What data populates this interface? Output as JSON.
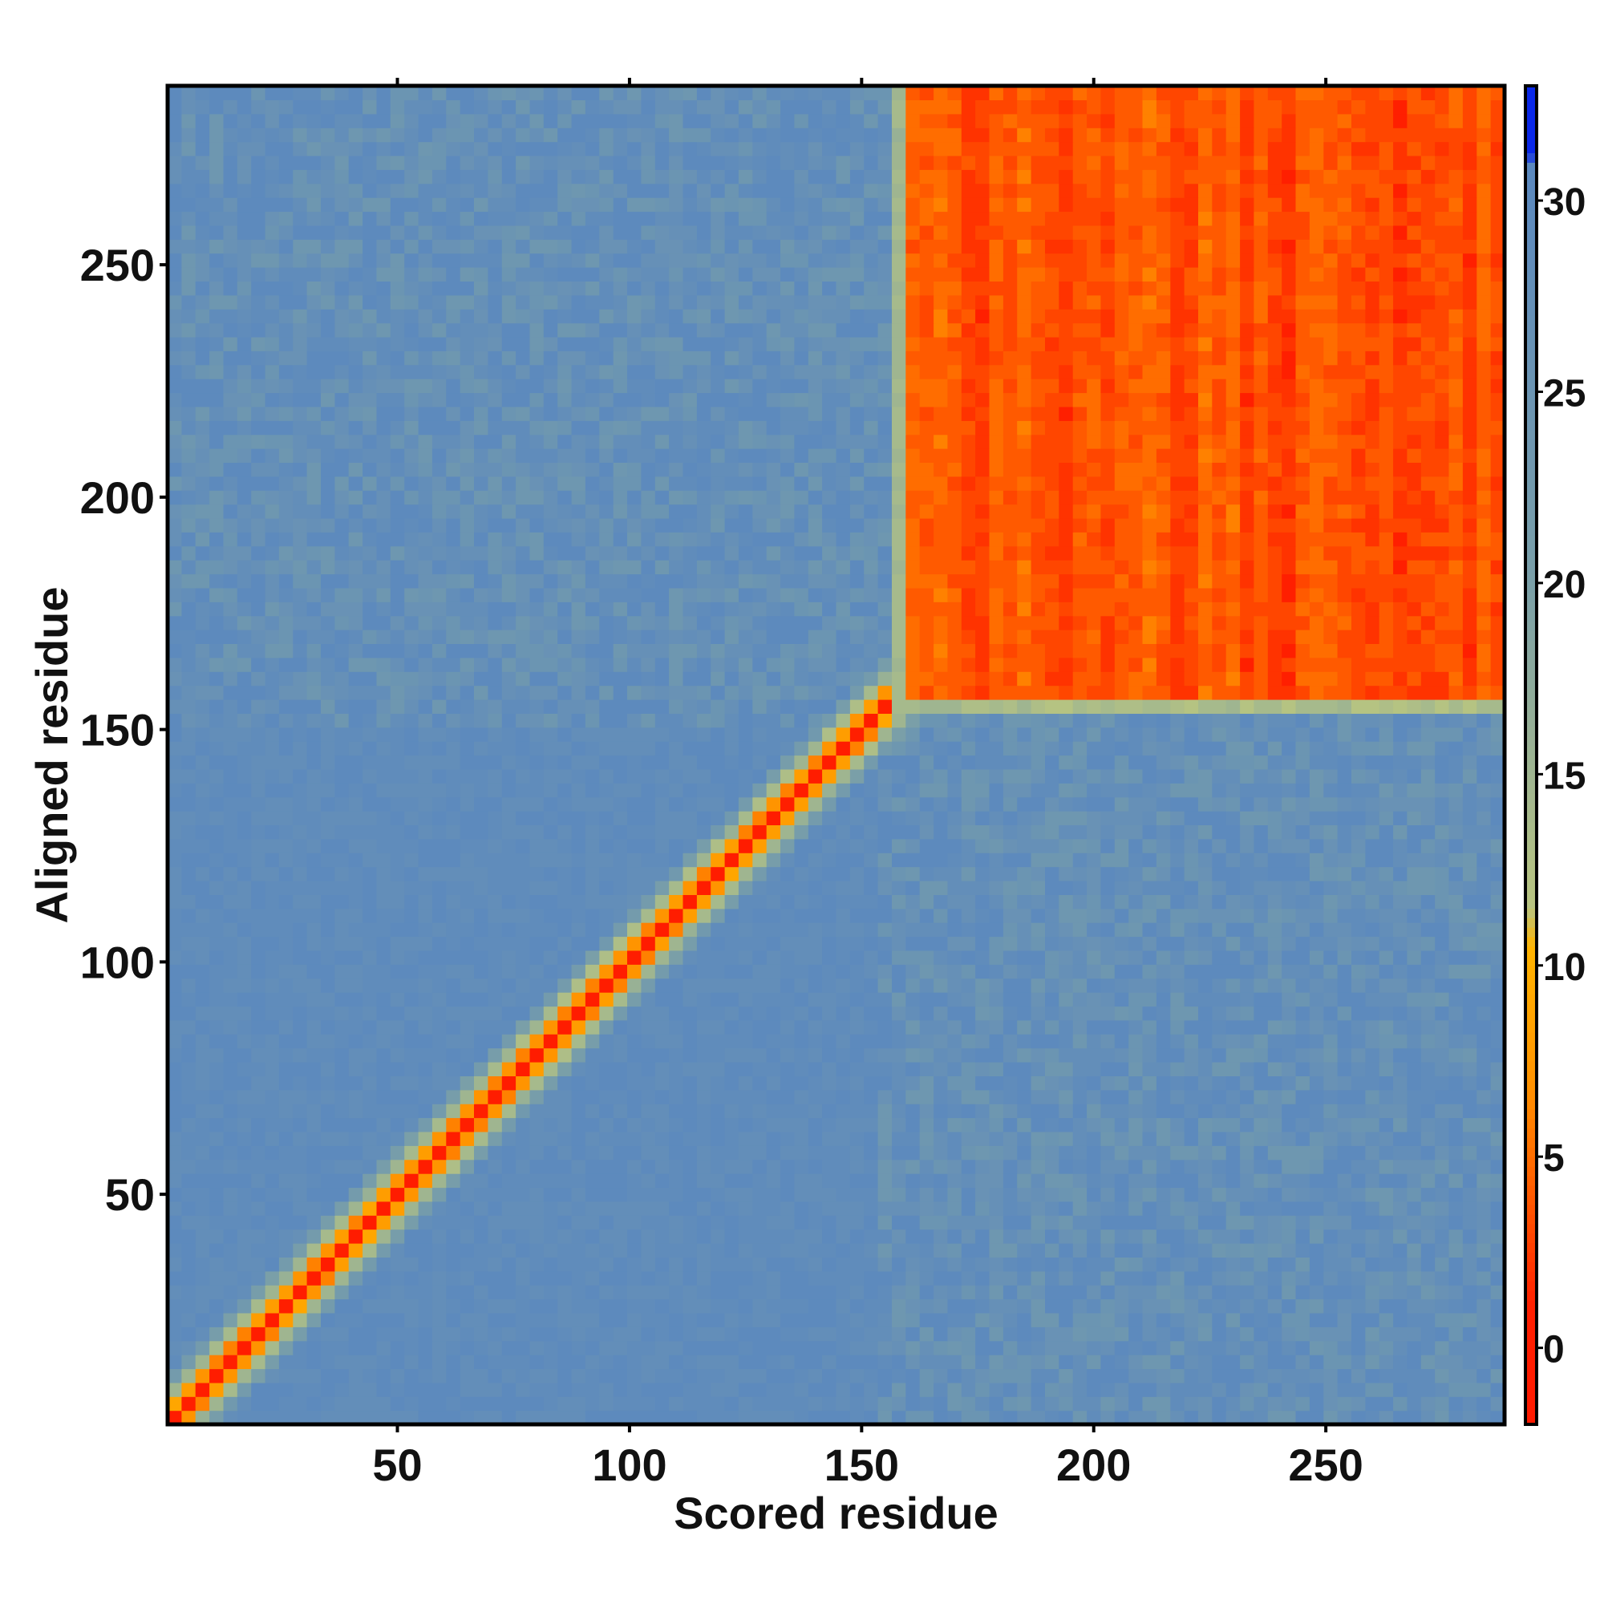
{
  "chart_data": {
    "type": "heatmap",
    "title": "",
    "xlabel": "Scored residue",
    "ylabel": "Aligned residue",
    "x_range": [
      1,
      288
    ],
    "y_range": [
      1,
      288
    ],
    "x_ticks": [
      50,
      100,
      150,
      200,
      250
    ],
    "y_ticks": [
      50,
      100,
      150,
      200,
      250
    ],
    "colorbar": {
      "range": [
        -2,
        33
      ],
      "ticks": [
        0,
        5,
        10,
        15,
        20,
        25,
        30
      ],
      "stops": [
        {
          "value": -2,
          "color": "#ff1a00"
        },
        {
          "value": 1,
          "color": "#ff1f00"
        },
        {
          "value": 4,
          "color": "#ff5a00"
        },
        {
          "value": 7,
          "color": "#ff9400"
        },
        {
          "value": 10.5,
          "color": "#ffb400"
        },
        {
          "value": 11.5,
          "color": "#b9c580"
        },
        {
          "value": 20,
          "color": "#7a9fa8"
        },
        {
          "value": 31,
          "color": "#5a88bf"
        },
        {
          "value": 31.2,
          "color": "#0a28e8"
        },
        {
          "value": 33,
          "color": "#0a28e8"
        }
      ]
    },
    "regions": [
      {
        "name": "diagonal",
        "from_residue": 1,
        "to_residue": 288,
        "value_on_diagonal": 0
      },
      {
        "name": "block",
        "x_range": [
          158,
          288
        ],
        "y_range": [
          155,
          288
        ],
        "value": 1
      },
      {
        "name": "background",
        "value": 29
      }
    ],
    "grid": false,
    "legend": "colorbar-right"
  }
}
